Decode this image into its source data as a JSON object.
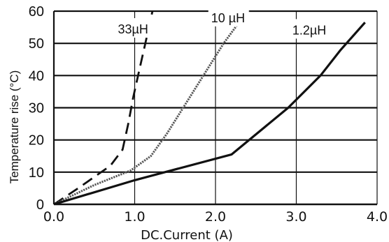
{
  "chart_data": {
    "type": "line",
    "title": "",
    "xlabel": "DC.Current (A)",
    "ylabel": "Temperature rise (°C)",
    "xlim": [
      0,
      4.0
    ],
    "ylim": [
      0,
      60
    ],
    "x_ticks": [
      "0.0",
      "1.0",
      "2.0",
      "3.0",
      "4.0"
    ],
    "y_ticks": [
      "0",
      "10",
      "20",
      "30",
      "40",
      "50",
      "60"
    ],
    "grid": "horizontal",
    "series": [
      {
        "name": "33µH",
        "style": "dashed",
        "color": "#111111",
        "points": [
          [
            0,
            0
          ],
          [
            0.3,
            5
          ],
          [
            0.7,
            12
          ],
          [
            0.85,
            17
          ],
          [
            0.92,
            25
          ],
          [
            0.98,
            33
          ],
          [
            1.06,
            42
          ],
          [
            1.15,
            52
          ],
          [
            1.22,
            60
          ]
        ]
      },
      {
        "name": "10 µH",
        "style": "dotted",
        "color": "#555555",
        "points": [
          [
            0,
            0
          ],
          [
            0.5,
            6
          ],
          [
            0.95,
            10.5
          ],
          [
            1.2,
            15
          ],
          [
            1.4,
            22
          ],
          [
            1.6,
            30
          ],
          [
            1.85,
            40
          ],
          [
            2.1,
            50
          ],
          [
            2.35,
            58.5
          ],
          [
            2.45,
            61
          ]
        ]
      },
      {
        "name": "1.2µH",
        "style": "solid",
        "color": "#111111",
        "points": [
          [
            0,
            0
          ],
          [
            1.0,
            7.5
          ],
          [
            2.2,
            15.5
          ],
          [
            2.9,
            30
          ],
          [
            3.3,
            40
          ],
          [
            3.55,
            48
          ],
          [
            3.85,
            56.5
          ]
        ]
      }
    ]
  }
}
